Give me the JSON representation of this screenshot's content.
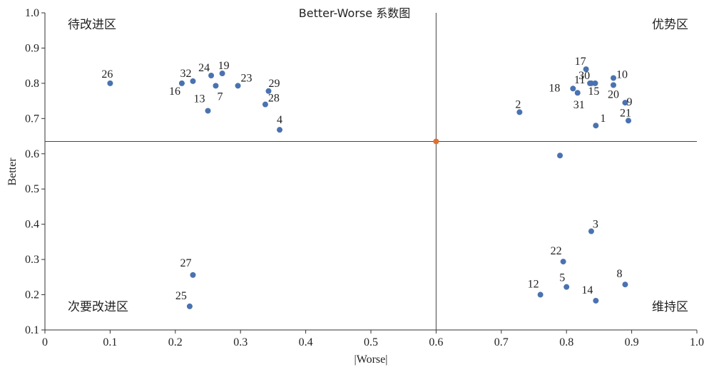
{
  "chart_data": {
    "type": "scatter",
    "title": "Better-Worse 系数图",
    "xlabel": "|Worse|",
    "ylabel": "Better",
    "xlim": [
      0,
      1.0
    ],
    "ylim": [
      0.1,
      1.0
    ],
    "x_ticks": [
      "0",
      "0.1",
      "0.2",
      "0.3",
      "0.4",
      "0.5",
      "0.6",
      "0.7",
      "0.8",
      "0.9",
      "1.0"
    ],
    "y_ticks": [
      "0.1",
      "0.2",
      "0.3",
      "0.4",
      "0.5",
      "0.6",
      "0.7",
      "0.8",
      "0.9",
      "1.0"
    ],
    "grid": false,
    "point_color": "#4a72b0",
    "center_color": "#e07030",
    "center": {
      "x": 0.6,
      "y": 0.635
    },
    "quadrants": {
      "top_left": "待改进区",
      "top_right": "优势区",
      "bottom_left": "次要改进区",
      "bottom_right": "维持区"
    },
    "points": [
      {
        "label": "1",
        "x": 0.845,
        "y": 0.68
      },
      {
        "label": "2",
        "x": 0.728,
        "y": 0.718
      },
      {
        "label": "3",
        "x": 0.838,
        "y": 0.38
      },
      {
        "label": "4",
        "x": 0.36,
        "y": 0.668
      },
      {
        "label": "5",
        "x": 0.8,
        "y": 0.222
      },
      {
        "label": "7",
        "x": 0.262,
        "y": 0.793
      },
      {
        "label": "8",
        "x": 0.89,
        "y": 0.229
      },
      {
        "label": "9",
        "x": 0.89,
        "y": 0.745
      },
      {
        "label": "10",
        "x": 0.872,
        "y": 0.815
      },
      {
        "label": "11",
        "x": 0.838,
        "y": 0.8
      },
      {
        "label": "12",
        "x": 0.76,
        "y": 0.2
      },
      {
        "label": "13",
        "x": 0.25,
        "y": 0.722
      },
      {
        "label": "14",
        "x": 0.845,
        "y": 0.183
      },
      {
        "label": "15",
        "x": 0.844,
        "y": 0.8
      },
      {
        "label": "16",
        "x": 0.21,
        "y": 0.8
      },
      {
        "label": "17",
        "x": 0.83,
        "y": 0.84
      },
      {
        "label": "18",
        "x": 0.81,
        "y": 0.785
      },
      {
        "label": "19",
        "x": 0.272,
        "y": 0.828
      },
      {
        "label": "20",
        "x": 0.872,
        "y": 0.795
      },
      {
        "label": "21",
        "x": 0.895,
        "y": 0.694
      },
      {
        "label": "22",
        "x": 0.795,
        "y": 0.294
      },
      {
        "label": "23",
        "x": 0.296,
        "y": 0.793
      },
      {
        "label": "24",
        "x": 0.255,
        "y": 0.822
      },
      {
        "label": "25",
        "x": 0.222,
        "y": 0.167
      },
      {
        "label": "26",
        "x": 0.1,
        "y": 0.8
      },
      {
        "label": "27",
        "x": 0.227,
        "y": 0.256
      },
      {
        "label": "28",
        "x": 0.338,
        "y": 0.74
      },
      {
        "label": "29",
        "x": 0.343,
        "y": 0.778
      },
      {
        "label": "30",
        "x": 0.836,
        "y": 0.8
      },
      {
        "label": "31",
        "x": 0.817,
        "y": 0.773
      },
      {
        "label": "32",
        "x": 0.227,
        "y": 0.806
      },
      {
        "label": "",
        "x": 0.79,
        "y": 0.595
      }
    ]
  }
}
